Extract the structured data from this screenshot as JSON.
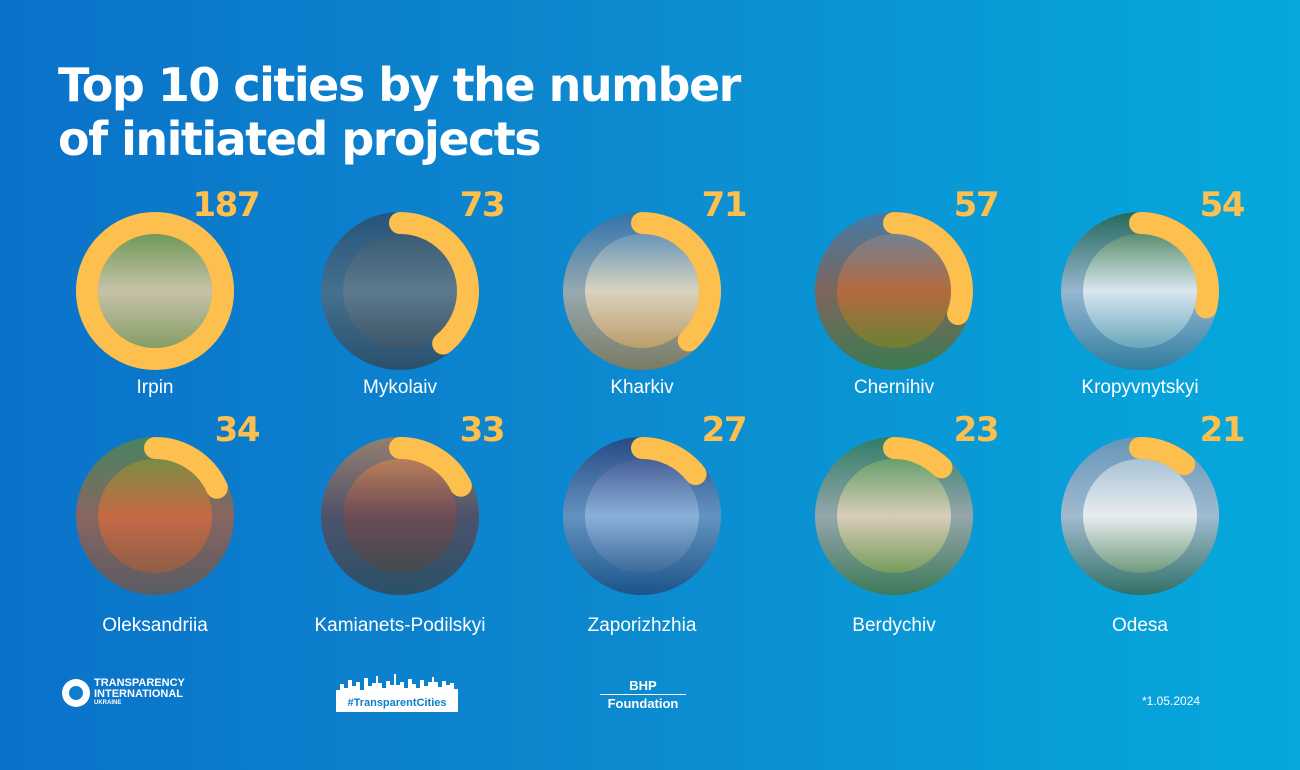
{
  "title": "Top 10 cities by the number of initiated projects",
  "chart_data": {
    "type": "radial-bar",
    "title": "Top 10 cities by the number of initiated projects",
    "max_value": 187,
    "categories": [
      "Irpin",
      "Mykolaiv",
      "Kharkiv",
      "Chernihiv",
      "Kropyvnytskyi",
      "Oleksandriia",
      "Kamianets-Podilskyi",
      "Zaporizhzhia",
      "Berdychiv",
      "Odesa"
    ],
    "values": [
      187,
      73,
      71,
      57,
      54,
      34,
      33,
      27,
      23,
      21
    ],
    "colors": {
      "arc": "#fdbf4d",
      "photo_track": "#1a5f96",
      "value_text": "#fdbf4d"
    }
  },
  "footer": {
    "ti_line1": "TRANSPARENCY",
    "ti_line2": "INTERNATIONAL",
    "ti_line3": "UKRAINE",
    "tc_tag": "#TransparentCities",
    "bhp_line1": "BHP",
    "bhp_line2": "Foundation",
    "date": "*1.05.2024"
  }
}
